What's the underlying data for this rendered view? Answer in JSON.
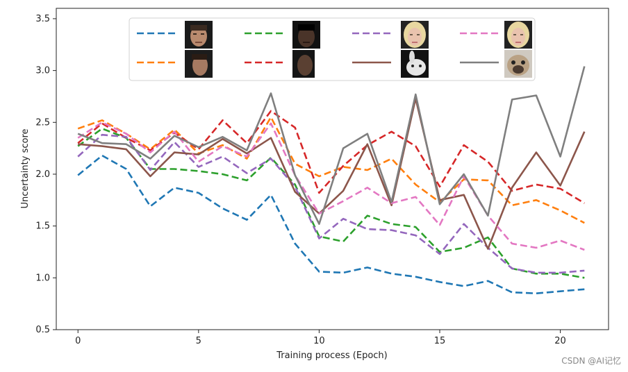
{
  "watermark": "CSDN @AI记忆",
  "chart_data": {
    "type": "line",
    "title": "",
    "xlabel": "Training process (Epoch)",
    "ylabel": "Uncertainty score",
    "xlim": [
      -0.9,
      22.0
    ],
    "ylim": [
      0.5,
      3.6
    ],
    "xticks": [
      0,
      5,
      10,
      15,
      20
    ],
    "yticks": [
      0.5,
      1.0,
      1.5,
      2.0,
      2.5,
      3.0,
      3.5
    ],
    "xtick_labels": [
      "0",
      "5",
      "10",
      "15",
      "20"
    ],
    "ytick_labels": [
      "0.5",
      "1.0",
      "1.5",
      "2.0",
      "2.5",
      "3.0",
      "3.5"
    ],
    "legend_position": "top",
    "x": [
      0,
      1,
      2,
      3,
      4,
      5,
      6,
      7,
      8,
      9,
      10,
      11,
      12,
      13,
      14,
      15,
      16,
      17,
      18,
      19,
      20,
      21
    ],
    "series": [
      {
        "name": "face-1",
        "color": "#1f77b4",
        "dash": "dashed",
        "values": [
          1.99,
          2.18,
          2.05,
          1.69,
          1.87,
          1.82,
          1.67,
          1.56,
          1.8,
          1.33,
          1.06,
          1.05,
          1.1,
          1.04,
          1.01,
          0.96,
          0.92,
          0.97,
          0.86,
          0.85,
          0.87,
          0.89
        ]
      },
      {
        "name": "face-2",
        "color": "#ff7f0e",
        "dash": "dashed",
        "values": [
          2.44,
          2.52,
          2.39,
          2.24,
          2.43,
          2.2,
          2.28,
          2.15,
          2.55,
          2.1,
          1.98,
          2.07,
          2.04,
          2.15,
          1.9,
          1.73,
          1.95,
          1.94,
          1.7,
          1.75,
          1.65,
          1.53
        ]
      },
      {
        "name": "face-3",
        "color": "#2ca02c",
        "dash": "dashed",
        "values": [
          2.27,
          2.44,
          2.35,
          2.05,
          2.05,
          2.03,
          2.0,
          1.94,
          2.16,
          1.9,
          1.4,
          1.35,
          1.6,
          1.52,
          1.49,
          1.25,
          1.29,
          1.39,
          1.09,
          1.04,
          1.04,
          1.0
        ]
      },
      {
        "name": "face-4",
        "color": "#d62728",
        "dash": "dashed",
        "values": [
          2.3,
          2.49,
          2.35,
          2.23,
          2.4,
          2.24,
          2.52,
          2.3,
          2.61,
          2.45,
          1.82,
          2.08,
          2.28,
          2.41,
          2.27,
          1.88,
          2.28,
          2.12,
          1.84,
          1.9,
          1.86,
          1.72
        ]
      },
      {
        "name": "face-5",
        "color": "#9467bd",
        "dash": "dashed",
        "values": [
          2.17,
          2.38,
          2.36,
          2.04,
          2.31,
          2.07,
          2.17,
          2.01,
          2.15,
          1.88,
          1.38,
          1.57,
          1.47,
          1.46,
          1.41,
          1.23,
          1.52,
          1.29,
          1.09,
          1.05,
          1.05,
          1.07
        ]
      },
      {
        "name": "face-6",
        "color": "#8c564b",
        "dash": "solid",
        "values": [
          2.29,
          2.27,
          2.24,
          1.98,
          2.21,
          2.19,
          2.34,
          2.2,
          2.35,
          1.83,
          1.62,
          1.84,
          2.29,
          1.7,
          2.73,
          1.75,
          1.8,
          1.28,
          1.87,
          2.21,
          1.89,
          2.41
        ]
      },
      {
        "name": "face-7",
        "color": "#e377c2",
        "dash": "dashed",
        "values": [
          2.35,
          2.5,
          2.39,
          2.21,
          2.41,
          2.12,
          2.27,
          2.17,
          2.49,
          1.99,
          1.62,
          1.74,
          1.87,
          1.72,
          1.78,
          1.51,
          1.98,
          1.6,
          1.33,
          1.29,
          1.36,
          1.27
        ]
      },
      {
        "name": "dog",
        "color": "#7f7f7f",
        "dash": "solid",
        "values": [
          2.39,
          2.3,
          2.29,
          2.15,
          2.37,
          2.26,
          2.36,
          2.23,
          2.78,
          1.99,
          1.52,
          2.25,
          2.39,
          1.73,
          2.77,
          1.71,
          2.0,
          1.6,
          2.72,
          2.76,
          2.17,
          3.04
        ]
      }
    ]
  }
}
